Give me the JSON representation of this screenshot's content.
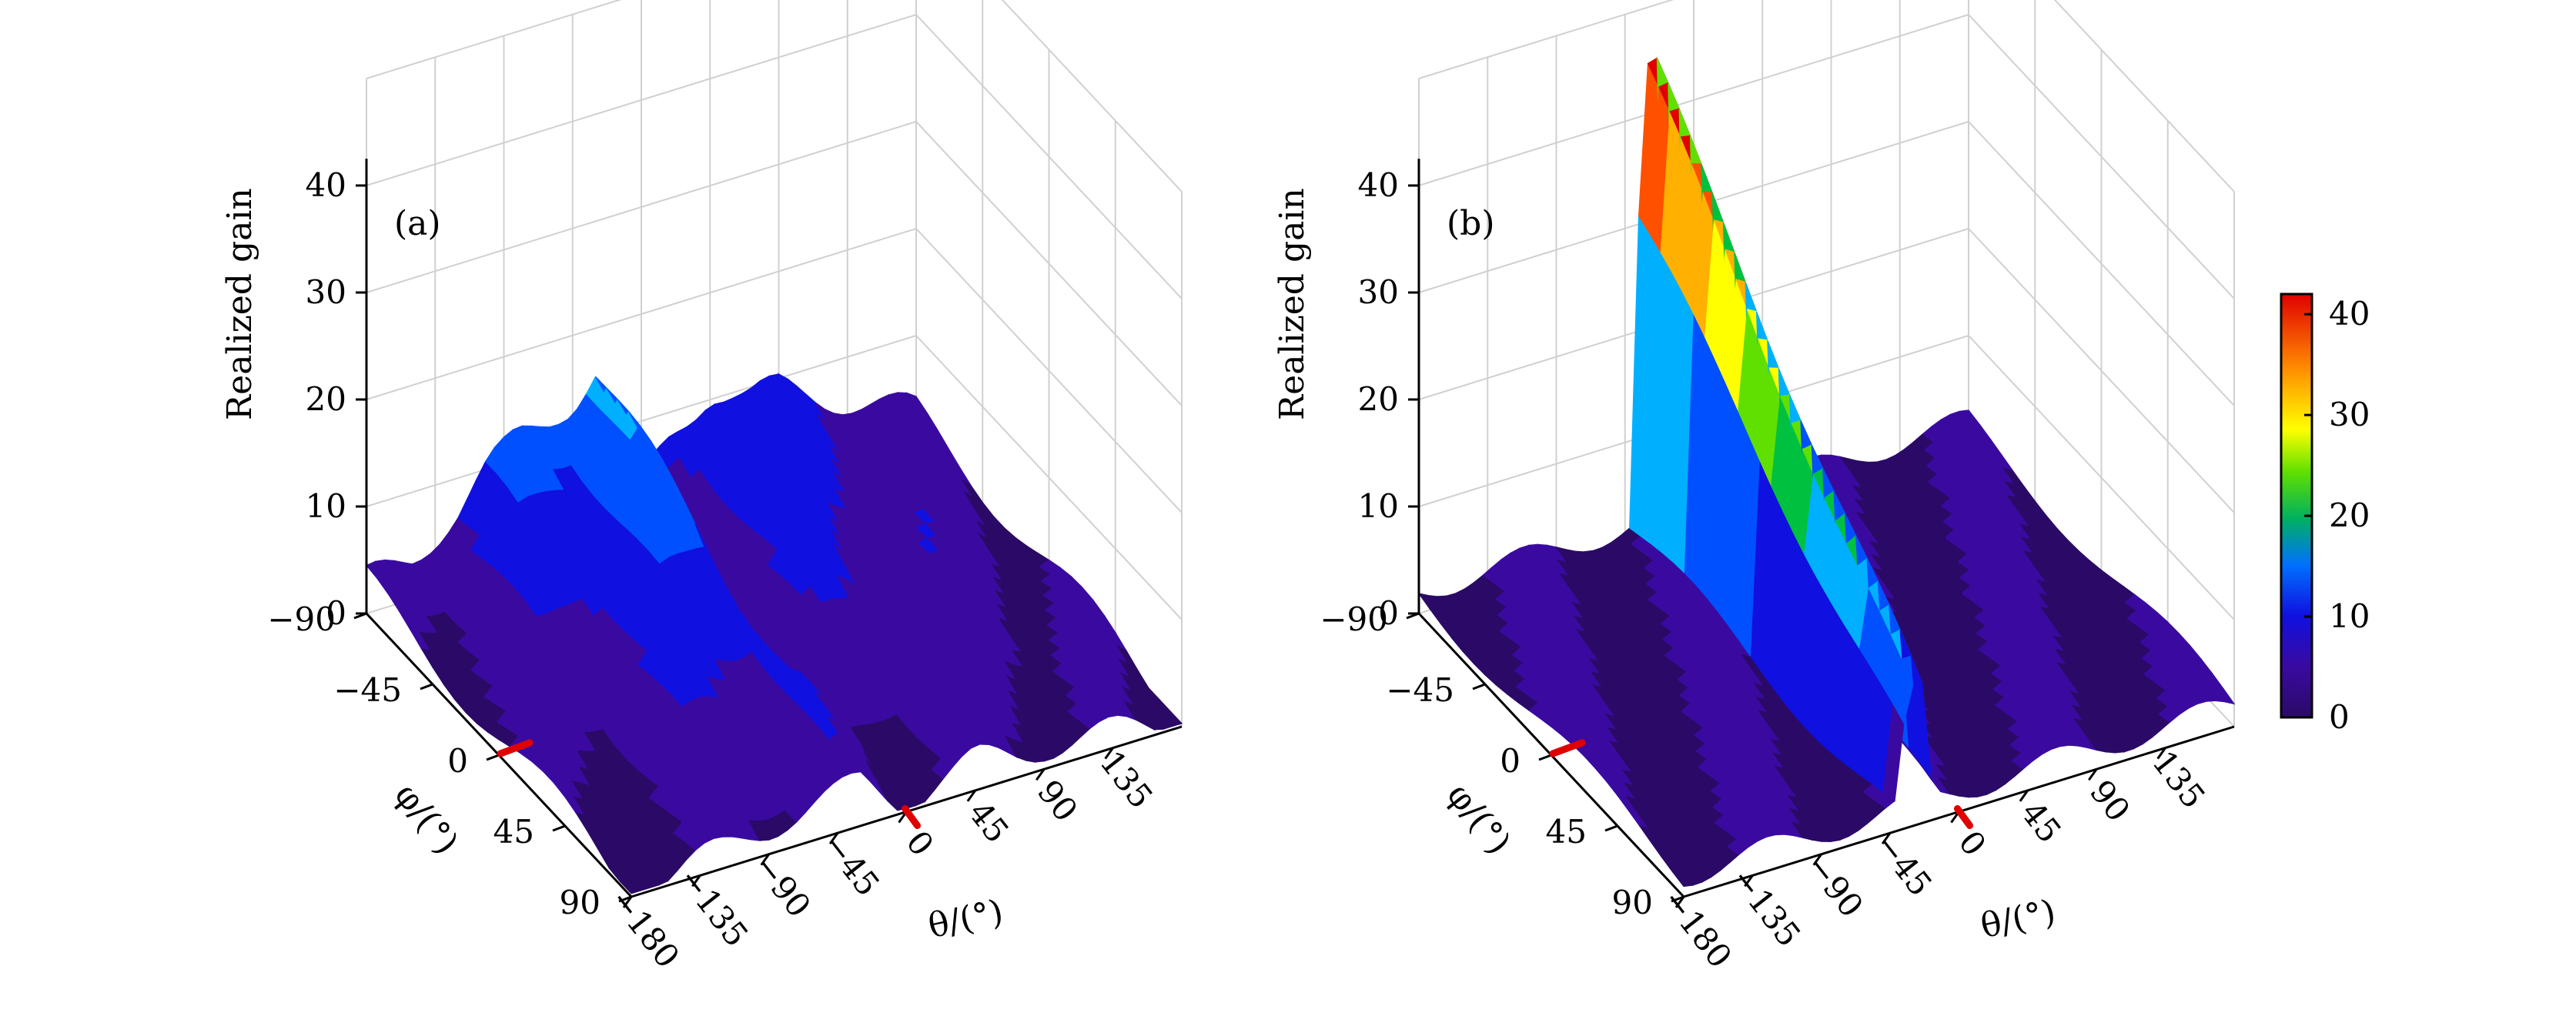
{
  "chart_data": [
    {
      "panel_label": "(a)",
      "type": "surface",
      "zlabel": "Realized gain",
      "xlabel": "θ/(°)",
      "ylabel": "φ/(°)",
      "x_ticks": [
        -180,
        -135,
        -90,
        -45,
        0,
        45,
        90,
        135
      ],
      "y_ticks": [
        -90,
        -45,
        0,
        45,
        90
      ],
      "z_ticks": [
        0,
        10,
        20,
        30,
        40
      ],
      "xlim": [
        -180,
        180
      ],
      "ylim": [
        -90,
        90
      ],
      "zlim": [
        0,
        42
      ],
      "grid": true,
      "marker_x": 0,
      "marker_y": 0,
      "peak": {
        "theta": -30,
        "phi": -60,
        "value": 16
      },
      "theta_profile": [
        [
          -180,
          3
        ],
        [
          -150,
          4
        ],
        [
          -120,
          7
        ],
        [
          -100,
          10
        ],
        [
          -80,
          12
        ],
        [
          -60,
          13
        ],
        [
          -45,
          14
        ],
        [
          -30,
          16
        ],
        [
          -15,
          10
        ],
        [
          0,
          4
        ],
        [
          20,
          8
        ],
        [
          45,
          11
        ],
        [
          70,
          9
        ],
        [
          90,
          9
        ],
        [
          120,
          7
        ],
        [
          150,
          5
        ],
        [
          180,
          3
        ]
      ]
    },
    {
      "panel_label": "(b)",
      "type": "surface",
      "zlabel": "Realized gain",
      "xlabel": "θ/(°)",
      "ylabel": "φ/(°)",
      "x_ticks": [
        -180,
        -135,
        -90,
        -45,
        0,
        45,
        90,
        135
      ],
      "y_ticks": [
        -90,
        -45,
        0,
        45,
        90
      ],
      "z_ticks": [
        0,
        10,
        20,
        30,
        40
      ],
      "xlim": [
        -180,
        180
      ],
      "ylim": [
        -90,
        90
      ],
      "zlim": [
        0,
        42
      ],
      "grid": true,
      "marker_x": 0,
      "marker_y": 0,
      "peak": {
        "theta": -30,
        "phi": -90,
        "value": 42
      },
      "ridge": {
        "theta_range": [
          -40,
          -15
        ],
        "value_at_phi_-90": 42,
        "value_at_phi_90": 10
      },
      "colorbar": {
        "ticks": [
          0,
          10,
          20,
          30,
          40
        ],
        "range": [
          0,
          42
        ]
      }
    }
  ],
  "colormap": [
    "#2a0a66",
    "#3a0aa0",
    "#1010e0",
    "#0050ff",
    "#00b0ff",
    "#00c040",
    "#60e000",
    "#ffff00",
    "#ffb000",
    "#ff5000",
    "#e00000"
  ]
}
